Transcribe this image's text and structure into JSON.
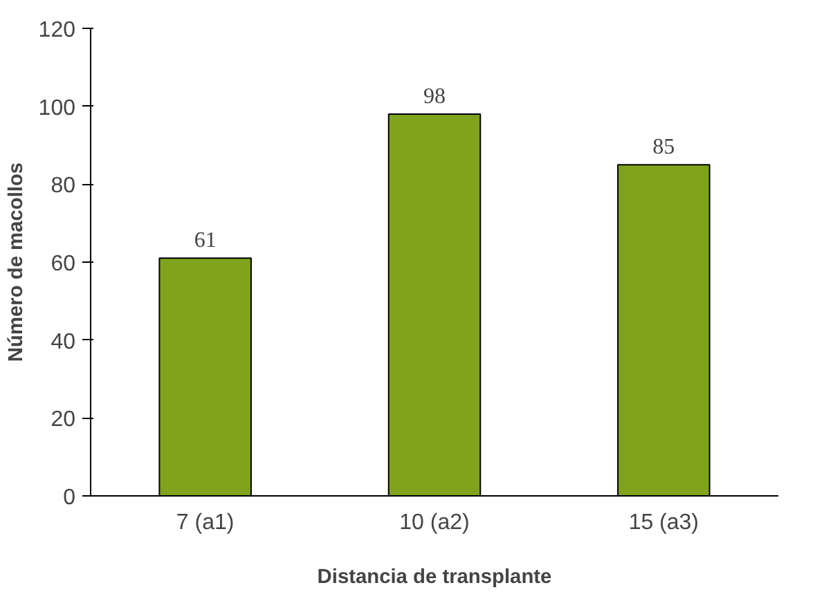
{
  "chart_data": {
    "type": "bar",
    "xlabel": "Distancia de transplante",
    "ylabel": "Número de macollos",
    "categories": [
      "7 (a1)",
      "10 (a2)",
      "15 (a3)"
    ],
    "values": [
      61,
      98,
      85
    ],
    "color": "#7fa31c",
    "ylim": [
      0,
      120
    ],
    "yticks": [
      0,
      20,
      40,
      60,
      80,
      100,
      120
    ],
    "grid": false,
    "data_labels": true
  }
}
